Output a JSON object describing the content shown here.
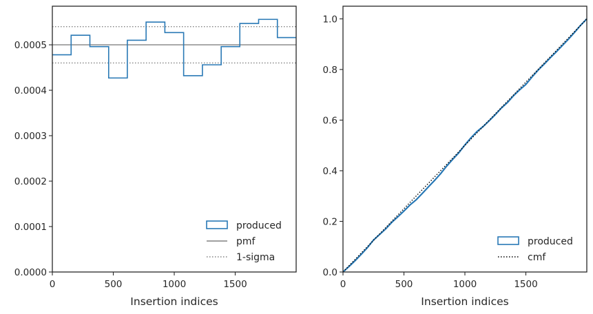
{
  "colors": {
    "produced": "#2878b5",
    "pmf": "#808080",
    "sigma": "#808080",
    "cmf": "#000000",
    "axis": "#262626"
  },
  "chart_data": [
    {
      "type": "step",
      "xlabel": "Insertion indices",
      "ylabel": "",
      "xlim": [
        0,
        2000
      ],
      "ylim": [
        0,
        0.000585
      ],
      "xticks": [
        "0",
        "500",
        "1000",
        "1500"
      ],
      "yticks": [
        "0.0000",
        "0.0001",
        "0.0002",
        "0.0003",
        "0.0004",
        "0.0005"
      ],
      "bin_edges": [
        0,
        154,
        308,
        462,
        615,
        769,
        923,
        1077,
        1231,
        1385,
        1538,
        1692,
        1846,
        2000
      ],
      "series": [
        {
          "name": "produced",
          "style": "step-outline",
          "values": [
            0.000478,
            0.000521,
            0.000496,
            0.000427,
            0.00051,
            0.00055,
            0.000527,
            0.000432,
            0.000456,
            0.000496,
            0.000547,
            0.000556,
            0.000516
          ]
        },
        {
          "name": "pmf",
          "style": "solid",
          "value": 0.0005
        },
        {
          "name": "1-sigma",
          "style": "dotted",
          "values": [
            0.00046,
            0.00054
          ]
        }
      ],
      "legend_position": "lower-right",
      "grid": false
    },
    {
      "type": "line",
      "xlabel": "Insertion indices",
      "ylabel": "",
      "xlim": [
        0,
        2000
      ],
      "ylim": [
        0,
        1.05
      ],
      "xticks": [
        "0",
        "500",
        "1000",
        "1500"
      ],
      "yticks": [
        "0.0",
        "0.2",
        "0.4",
        "0.6",
        "0.8",
        "1.0"
      ],
      "series": [
        {
          "name": "produced",
          "style": "solid",
          "x": [
            0,
            50,
            100,
            150,
            200,
            250,
            300,
            350,
            400,
            450,
            500,
            550,
            600,
            650,
            700,
            750,
            800,
            850,
            900,
            950,
            1000,
            1050,
            1100,
            1150,
            1200,
            1250,
            1300,
            1350,
            1400,
            1450,
            1500,
            1550,
            1600,
            1650,
            1700,
            1750,
            1800,
            1850,
            1900,
            1950,
            2000
          ],
          "y": [
            0,
            0.022,
            0.045,
            0.07,
            0.096,
            0.126,
            0.148,
            0.17,
            0.196,
            0.218,
            0.241,
            0.265,
            0.285,
            0.31,
            0.336,
            0.361,
            0.388,
            0.418,
            0.445,
            0.471,
            0.502,
            0.53,
            0.555,
            0.575,
            0.598,
            0.622,
            0.648,
            0.67,
            0.697,
            0.72,
            0.741,
            0.77,
            0.797,
            0.821,
            0.846,
            0.87,
            0.895,
            0.92,
            0.947,
            0.975,
            1.0
          ]
        },
        {
          "name": "cmf",
          "style": "dotted",
          "x": [
            0,
            2000
          ],
          "y": [
            0,
            1
          ]
        }
      ],
      "legend_position": "lower-right",
      "grid": false
    }
  ]
}
